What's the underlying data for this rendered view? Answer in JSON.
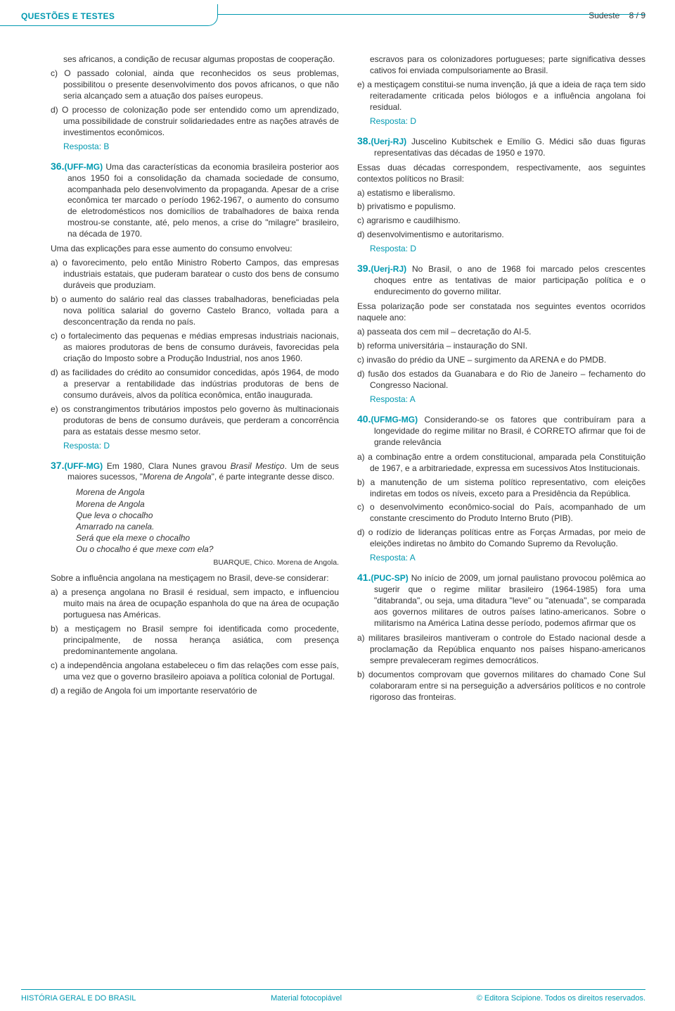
{
  "header": {
    "title": "QUESTÕES E TESTES",
    "region": "Sudeste",
    "page": "8 / 9"
  },
  "colors": {
    "accent": "#0099b0",
    "text": "#333333",
    "background": "#ffffff"
  },
  "left": {
    "cont_intro": "ses africanos, a condição de recusar algumas propostas de cooperação.",
    "cont_c": "c) O passado colonial, ainda que reconhecidos os seus problemas, possibilitou o presente desenvolvimento dos povos africanos, o que não seria alcançado sem a atuação dos países europeus.",
    "cont_d": "d) O processo de colonização pode ser entendido como um aprendizado, uma possibilidade de construir solidariedades entre as nações através de investimentos econômicos.",
    "ans35": "Resposta: B",
    "q36": {
      "num": "36.",
      "src": "(UFF-MG)",
      "body": " Uma das características da economia brasileira posterior aos anos 1950 foi a consolidação da chamada sociedade de consumo, acompanhada pelo desenvolvimento da propaganda. Apesar de a crise econômica ter marcado o período 1962-1967, o aumento do consumo de eletrodomésticos nos domicílios de trabalhadores de baixa renda mostrou-se constante, até, pelo menos, a crise do \"milagre\" brasileiro, na década de 1970.",
      "lead": "Uma das explicações para esse aumento do consumo envolveu:",
      "a": "a) o favorecimento, pelo então Ministro Roberto Campos, das empresas industriais estatais, que puderam baratear o custo dos bens de consumo duráveis que produziam.",
      "b": "b) o aumento do salário real das classes trabalhadoras, beneficiadas pela nova política salarial do governo Castelo Branco, voltada para a desconcentração da renda no país.",
      "c": "c) o fortalecimento das pequenas e médias empresas industriais nacionais, as maiores produtoras de bens de consumo duráveis, favorecidas pela criação do Imposto sobre a Produção Industrial, nos anos 1960.",
      "d": "d) as facilidades do crédito ao consumidor concedidas, após 1964, de modo a preservar a rentabilidade das indústrias produtoras de bens de consumo duráveis, alvos da política econômica, então inaugurada.",
      "e": "e) os constrangimentos tributários impostos pelo governo às multinacionais produtoras de bens de consumo duráveis, que perderam a concorrência para as estatais desse mesmo setor.",
      "ans": "Resposta: D"
    },
    "q37": {
      "num": "37.",
      "src": "(UFF-MG)",
      "body1": " Em 1980, Clara Nunes gravou ",
      "body_it1": "Brasil Mestiço",
      "body2": ". Um de seus maiores sucessos, \"",
      "body_it2": "Morena de Angola",
      "body3": "\", é parte integrante desse disco.",
      "poem": [
        "Morena de Angola",
        "Morena de Angola",
        "Que leva o chocalho",
        "Amarrado na canela.",
        "Será que ela mexe o chocalho",
        "Ou o chocalho é que mexe com ela?"
      ],
      "credit": "BUARQUE, Chico. Morena de Angola.",
      "lead": "Sobre a influência angolana na mestiçagem no Brasil, deve-se considerar:",
      "a": "a) a presença angolana no Brasil é residual, sem impacto, e influenciou muito mais na área de ocupação espanhola do que na área de ocupação portuguesa nas Américas.",
      "b": "b) a mestiçagem no Brasil sempre foi identificada como procedente, principalmente, de nossa herança asiática, com presença predominantemente angolana.",
      "c": "c) a independência angolana estabeleceu o fim das relações com esse país, uma vez que o governo brasileiro apoiava a política colonial de Portugal.",
      "d": "d) a região de Angola foi um importante reservatório de"
    }
  },
  "right": {
    "cont": "escravos para os colonizadores portugueses; parte significativa desses cativos foi enviada compulsoriamente ao Brasil.",
    "e": "e) a mestiçagem constitui-se numa invenção, já que a ideia de raça tem sido reiteradamente criticada pelos biólogos e a influência angolana foi residual.",
    "ans37": "Resposta: D",
    "q38": {
      "num": "38.",
      "src": "(Uerj-RJ)",
      "body": " Juscelino Kubitschek e Emílio G. Médici são duas figuras representativas das décadas de 1950 e 1970.",
      "lead": "Essas duas décadas correspondem, respectivamente, aos seguintes contextos políticos no Brasil:",
      "a": "a) estatismo e liberalismo.",
      "b": "b) privatismo e populismo.",
      "c": "c) agrarismo e caudilhismo.",
      "d": "d) desenvolvimentismo e autoritarismo.",
      "ans": "Resposta: D"
    },
    "q39": {
      "num": "39.",
      "src": "(Uerj-RJ)",
      "body": " No Brasil, o ano de 1968 foi marcado pelos crescentes choques entre as tentativas de maior participação política e o endurecimento do governo militar.",
      "lead": "Essa polarização pode ser constatada nos seguintes eventos ocorridos naquele ano:",
      "a": "a) passeata dos cem mil – decretação do AI-5.",
      "b": "b) reforma universitária – instauração do SNI.",
      "c": "c) invasão do prédio da UNE – surgimento da ARENA e do PMDB.",
      "d": "d) fusão dos estados da Guanabara e do Rio de Janeiro – fechamento do Congresso Nacional.",
      "ans": "Resposta: A"
    },
    "q40": {
      "num": "40.",
      "src": "(UFMG-MG)",
      "body": " Considerando-se os fatores que contribuíram para a longevidade do regime militar no Brasil, é CORRETO afirmar que foi de grande relevância",
      "a": "a) a combinação entre a ordem constitucional, amparada pela Constituição de 1967, e a arbitrariedade, expressa em sucessivos Atos Institucionais.",
      "b": "b) a manutenção de um sistema político representativo, com eleições indiretas em todos os níveis, exceto para a Presidência da República.",
      "c": "c) o desenvolvimento econômico-social do País, acompanhado de um constante crescimento do Produto Interno Bruto (PIB).",
      "d": "d) o rodízio de lideranças políticas entre as Forças Armadas, por meio de eleições indiretas no âmbito do Comando Supremo da Revolução.",
      "ans": "Resposta: A"
    },
    "q41": {
      "num": "41.",
      "src": "(PUC-SP)",
      "body": " No início de 2009, um jornal paulistano provocou polêmica ao sugerir que o regime militar brasileiro (1964-1985) fora uma \"ditabranda\", ou seja, uma ditadura \"leve\" ou \"atenuada\", se comparada aos governos militares de outros países latino-americanos. Sobre o militarismo na América Latina desse período, podemos afirmar que os",
      "a": "a) militares brasileiros mantiveram o controle do Estado nacional desde a proclamação da República enquanto nos países hispano-americanos sempre prevaleceram regimes democráticos.",
      "b": "b) documentos comprovam que governos militares do chamado Cone Sul colaboraram entre si na perseguição a adversários políticos e no controle rigoroso das fronteiras."
    }
  },
  "footer": {
    "left": "HISTÓRIA GERAL E DO BRASIL",
    "center": "Material fotocopiável",
    "right": "© Editora Scipione. Todos os direitos reservados."
  }
}
